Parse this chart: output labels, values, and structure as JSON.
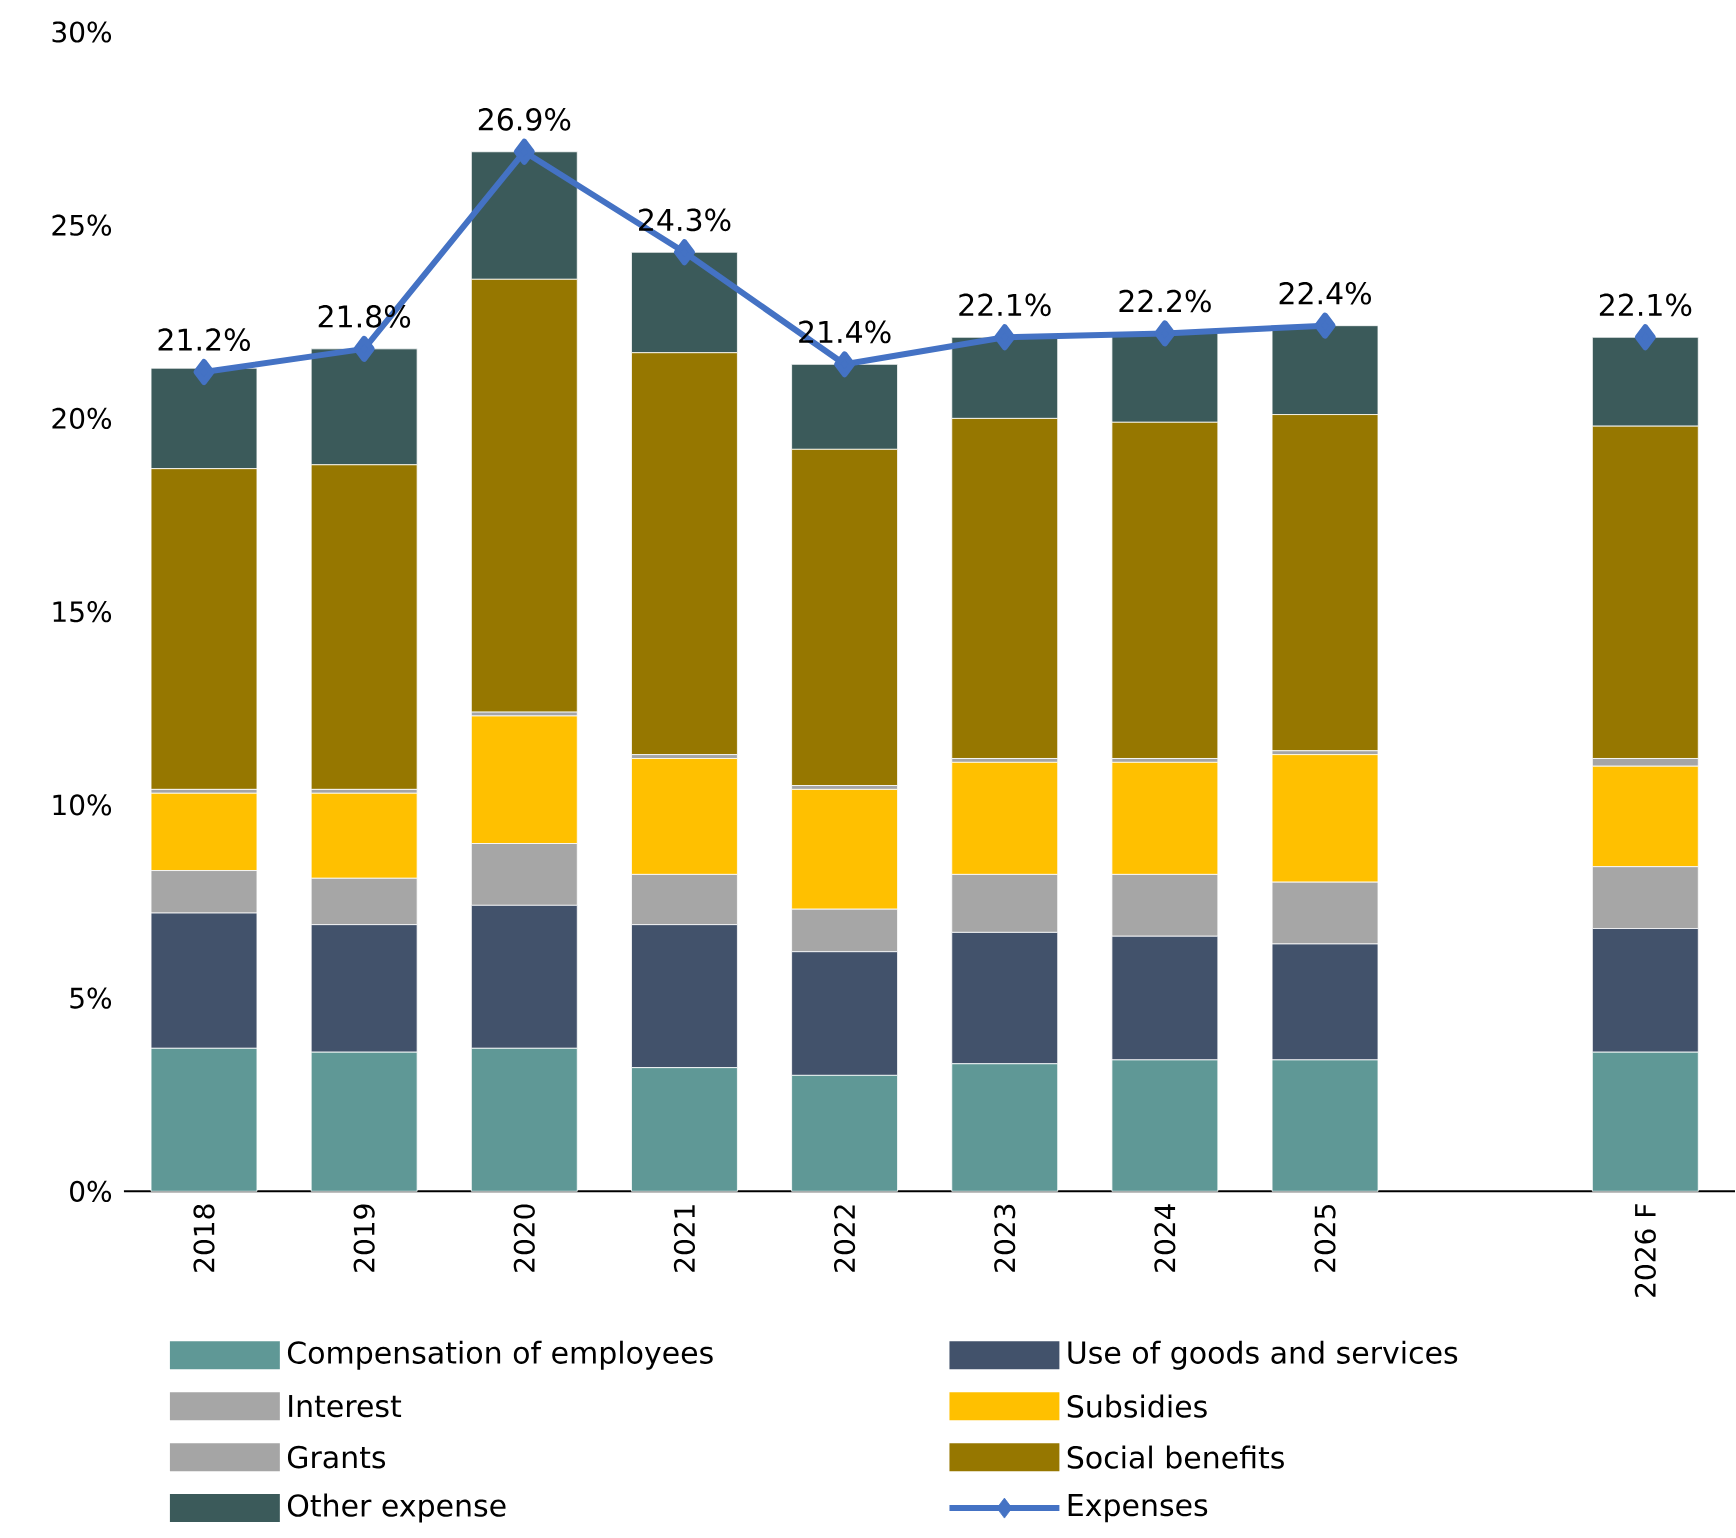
{
  "chart_data": {
    "type": "bar",
    "stacked": true,
    "legend": "bottom",
    "categories": [
      "2018",
      "2019",
      "2020",
      "2021",
      "2022",
      "2023",
      "2024",
      "2025",
      null,
      "2026 F"
    ],
    "series": [
      {
        "name": "Compensation of employees",
        "color": "#5f9896",
        "values": [
          3.7,
          3.6,
          3.7,
          3.2,
          3.0,
          3.3,
          3.4,
          3.4,
          null,
          3.6
        ]
      },
      {
        "name": "Use of goods and services",
        "color": "#42526b",
        "values": [
          3.5,
          3.3,
          3.7,
          3.7,
          3.2,
          3.4,
          3.2,
          3.0,
          null,
          3.2
        ]
      },
      {
        "name": "Interest",
        "color": "#a6a6a6",
        "values": [
          1.1,
          1.2,
          1.6,
          1.3,
          1.1,
          1.5,
          1.6,
          1.6,
          null,
          1.6
        ]
      },
      {
        "name": "Subsidies",
        "color": "#ffc000",
        "values": [
          2.0,
          2.2,
          3.3,
          3.0,
          3.1,
          2.9,
          2.9,
          3.3,
          null,
          2.6
        ]
      },
      {
        "name": "Grants",
        "color": "#a5a5a5",
        "values": [
          0.1,
          0.1,
          0.1,
          0.1,
          0.1,
          0.1,
          0.1,
          0.1,
          null,
          0.2
        ]
      },
      {
        "name": "Social benefits",
        "color": "#967700",
        "values": [
          8.3,
          8.4,
          11.2,
          10.4,
          8.7,
          8.8,
          8.7,
          8.7,
          null,
          8.6
        ]
      },
      {
        "name": "Other expense",
        "color": "#3b5a5a",
        "values": [
          2.6,
          3.0,
          3.3,
          2.6,
          2.2,
          2.1,
          2.3,
          2.3,
          null,
          2.3
        ]
      },
      {
        "name": "Expenses",
        "type": "line",
        "marker": "diamond",
        "color": "#4472c4",
        "values": [
          21.2,
          21.8,
          26.9,
          24.3,
          21.4,
          22.1,
          22.2,
          22.4,
          null,
          22.1
        ],
        "value_labels": [
          "21.2%",
          "21.8%",
          "26.9%",
          "24.3%",
          "21.4%",
          "22.1%",
          "22.2%",
          "22.4%",
          null,
          "22.1%"
        ]
      }
    ],
    "ylim": [
      0,
      30
    ],
    "yticks": [
      {
        "value": 0,
        "label": "0%"
      },
      {
        "value": 5,
        "label": "5%"
      },
      {
        "value": 10,
        "label": "10%"
      },
      {
        "value": 15,
        "label": "15%"
      },
      {
        "value": 20,
        "label": "20%"
      },
      {
        "value": 25,
        "label": "25%"
      },
      {
        "value": 30,
        "label": "30%"
      }
    ]
  }
}
